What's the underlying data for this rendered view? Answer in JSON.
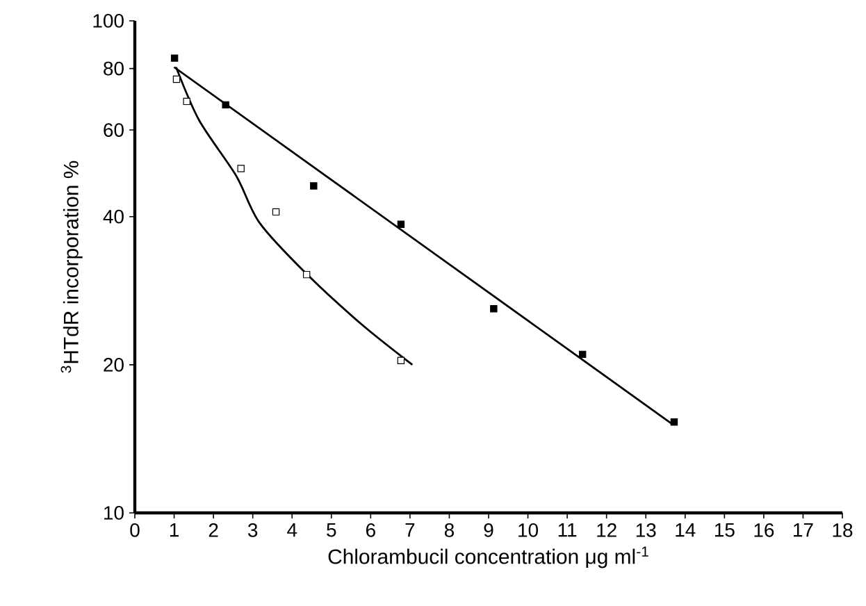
{
  "chart_data": {
    "type": "scatter",
    "xlabel": "Chlorambucil concentration μg ml$^{-1}$",
    "ylabel": "$^{3}$HTdR incorporation %",
    "log": "y",
    "grid": false,
    "xlim": [
      0,
      18
    ],
    "ylim": [
      10,
      100
    ],
    "xticks": [
      0,
      1,
      2,
      3,
      4,
      5,
      6,
      7,
      8,
      9,
      10,
      11,
      12,
      13,
      14,
      15,
      16,
      17,
      18
    ],
    "yticks": [
      10,
      20,
      40,
      60,
      80,
      100
    ],
    "series": [
      {
        "color": "#000000",
        "marker": "square",
        "x": [
          1.01,
          2.31,
          4.55,
          6.77,
          9.13,
          11.39,
          13.72
        ],
        "values": [
          84.0,
          67.5,
          46.2,
          38.6,
          26.0,
          21.0,
          15.3
        ]
      },
      {
        "color": "#ffffff",
        "marker": "square",
        "x": [
          1.06,
          1.32,
          2.7,
          3.59,
          4.37,
          6.77
        ],
        "values": [
          76.1,
          68.6,
          50.1,
          40.9,
          30.5,
          20.4
        ]
      },
      {
        "type": "line",
        "marker": "none",
        "color": "#000000",
        "x": [
          1.0,
          13.65
        ],
        "values": [
          80.5,
          15.2
        ]
      },
      {
        "type": "line",
        "marker": "none",
        "color": "#000000",
        "x": [
          1.05,
          1.64,
          2.58,
          3.17,
          4.35,
          5.76,
          7.06
        ],
        "values": [
          80.5,
          62.7,
          48.4,
          38.9,
          30.7,
          24.2,
          20.0
        ]
      }
    ]
  }
}
